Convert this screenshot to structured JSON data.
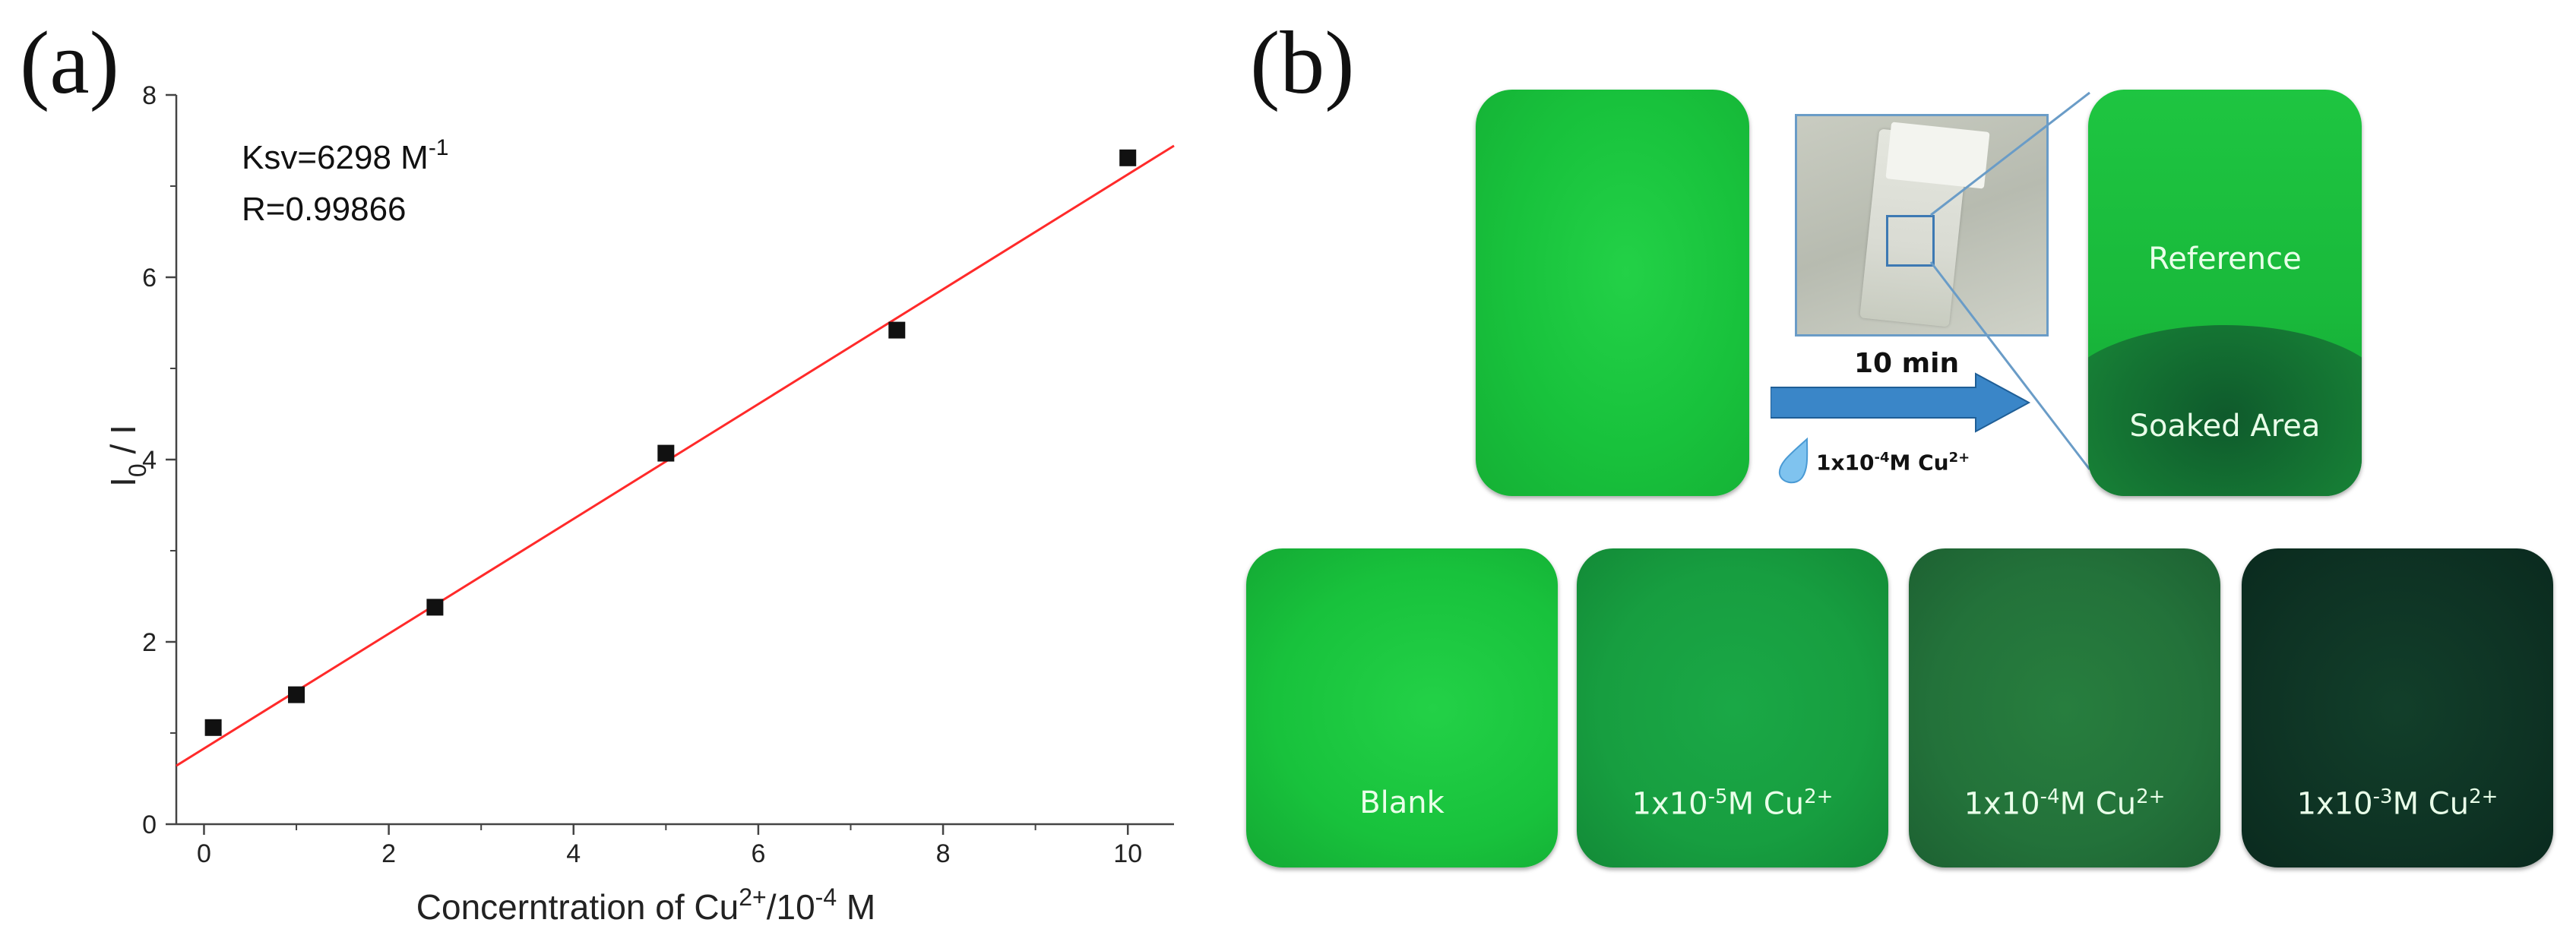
{
  "panel_a": {
    "letter": "(a)",
    "annotation_ksv": "Ksv=6298 M",
    "annotation_ksv_sup": "-1",
    "annotation_r": "R=0.99866"
  },
  "chart_data": {
    "type": "scatter",
    "x_ticks": [
      "0",
      "2",
      "4",
      "6",
      "8",
      "10"
    ],
    "y_ticks": [
      "0",
      "2",
      "4",
      "6",
      "8"
    ],
    "xlim": [
      -0.3,
      10.5
    ],
    "ylim": [
      0,
      8
    ],
    "xlabel_parts": [
      "Concerntration of Cu",
      "2+",
      "/10",
      "-4",
      " M"
    ],
    "ylabel_parts": [
      "I",
      "0",
      " / I"
    ],
    "marker_color": "#111111",
    "fit_color": "#ff2a2a",
    "series": [
      {
        "x": [
          0.1,
          1,
          2.5,
          5,
          7.5,
          10
        ],
        "y": [
          1.06,
          1.42,
          2.38,
          4.07,
          5.42,
          7.31
        ]
      }
    ],
    "fit": {
      "type": "linear",
      "slope": 0.6298,
      "intercept": 0.83,
      "x_range": [
        -0.3,
        10.5
      ]
    }
  },
  "panel_b": {
    "letter": "(b)",
    "time_label": "10 min",
    "drop_label_pre": "1x10",
    "drop_label_sup": "-4",
    "drop_label_post": "M Cu",
    "drop_label_ion": "2+",
    "reference_label": "Reference",
    "soaked_label": "Soaked Area",
    "blank_label": "Blank",
    "conc_labels": [
      {
        "pre": "1x10",
        "exp": "-5",
        "mid": "M Cu",
        "ion": "2+"
      },
      {
        "pre": "1x10",
        "exp": "-4",
        "mid": "M Cu",
        "ion": "2+"
      },
      {
        "pre": "1x10",
        "exp": "-3",
        "mid": "M Cu",
        "ion": "2+"
      }
    ],
    "colors": {
      "bright_green": "#18c23c",
      "green_2": "#17a640",
      "green_3": "#1f7a3a",
      "green_4": "#0e3324",
      "arrow_blue": "#3a86c8",
      "photo_frame": "#6a9cc7"
    }
  }
}
